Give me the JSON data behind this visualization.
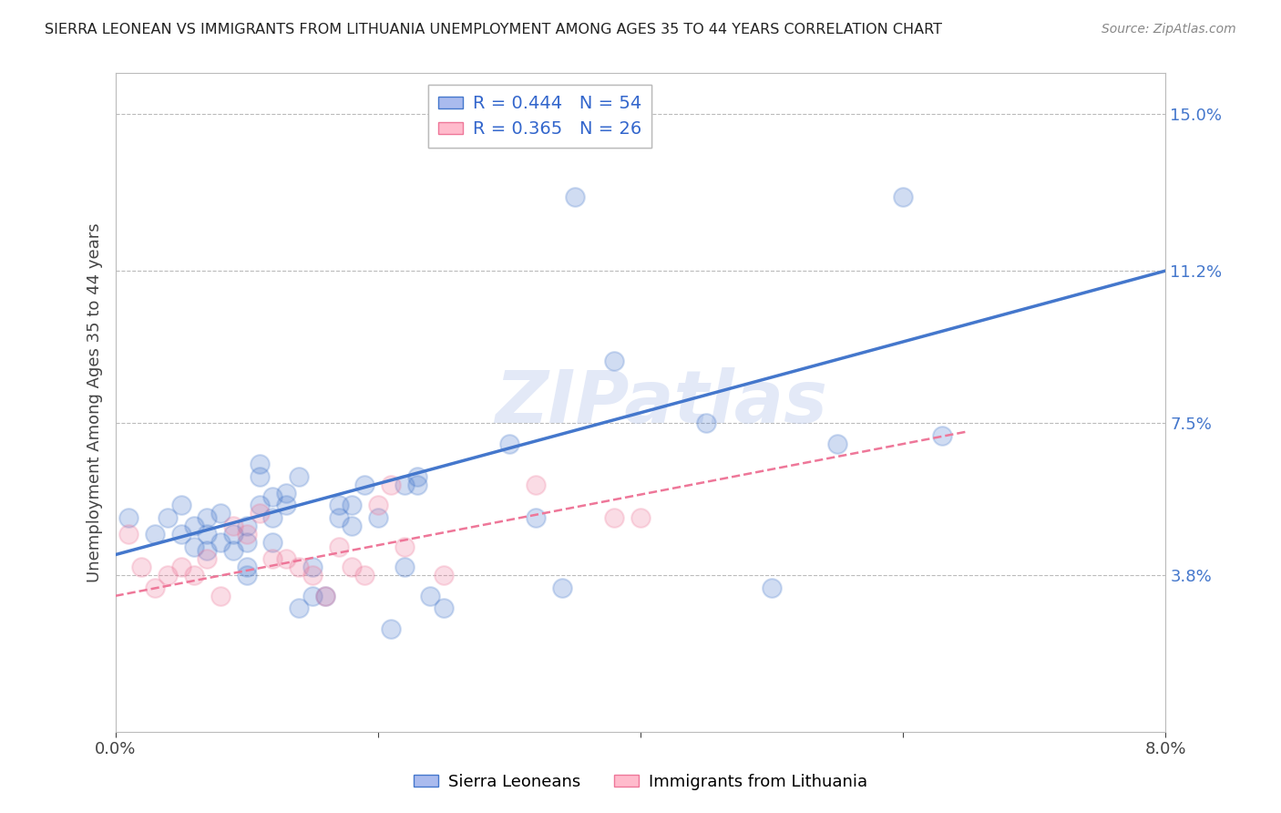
{
  "title": "SIERRA LEONEAN VS IMMIGRANTS FROM LITHUANIA UNEMPLOYMENT AMONG AGES 35 TO 44 YEARS CORRELATION CHART",
  "source": "Source: ZipAtlas.com",
  "xlabel": "",
  "ylabel": "Unemployment Among Ages 35 to 44 years",
  "xlim": [
    0.0,
    0.08
  ],
  "ylim": [
    0.0,
    0.16
  ],
  "xticks": [
    0.0,
    0.02,
    0.04,
    0.06,
    0.08
  ],
  "xticklabels": [
    "0.0%",
    "",
    "",
    "",
    "8.0%"
  ],
  "ytick_labels_right": [
    "15.0%",
    "11.2%",
    "7.5%",
    "3.8%"
  ],
  "ytick_vals_right": [
    0.15,
    0.112,
    0.075,
    0.038
  ],
  "legend_entries": [
    {
      "label": "R = 0.444   N = 54",
      "color": "#6699ff"
    },
    {
      "label": "R = 0.365   N = 26",
      "color": "#ff99aa"
    }
  ],
  "bottom_legend": [
    "Sierra Leoneans",
    "Immigrants from Lithuania"
  ],
  "blue_color": "#4477cc",
  "pink_color": "#ee7799",
  "watermark": "ZIPatlas",
  "sl_scatter": [
    [
      0.001,
      0.052
    ],
    [
      0.003,
      0.048
    ],
    [
      0.004,
      0.052
    ],
    [
      0.005,
      0.055
    ],
    [
      0.005,
      0.048
    ],
    [
      0.006,
      0.05
    ],
    [
      0.006,
      0.045
    ],
    [
      0.007,
      0.044
    ],
    [
      0.007,
      0.048
    ],
    [
      0.007,
      0.052
    ],
    [
      0.008,
      0.053
    ],
    [
      0.008,
      0.046
    ],
    [
      0.009,
      0.044
    ],
    [
      0.009,
      0.048
    ],
    [
      0.01,
      0.05
    ],
    [
      0.01,
      0.046
    ],
    [
      0.01,
      0.04
    ],
    [
      0.01,
      0.038
    ],
    [
      0.011,
      0.062
    ],
    [
      0.011,
      0.065
    ],
    [
      0.011,
      0.055
    ],
    [
      0.012,
      0.057
    ],
    [
      0.012,
      0.052
    ],
    [
      0.012,
      0.046
    ],
    [
      0.013,
      0.055
    ],
    [
      0.013,
      0.058
    ],
    [
      0.014,
      0.062
    ],
    [
      0.014,
      0.03
    ],
    [
      0.015,
      0.04
    ],
    [
      0.015,
      0.033
    ],
    [
      0.016,
      0.033
    ],
    [
      0.017,
      0.055
    ],
    [
      0.017,
      0.052
    ],
    [
      0.018,
      0.055
    ],
    [
      0.018,
      0.05
    ],
    [
      0.019,
      0.06
    ],
    [
      0.02,
      0.052
    ],
    [
      0.021,
      0.025
    ],
    [
      0.022,
      0.06
    ],
    [
      0.022,
      0.04
    ],
    [
      0.023,
      0.062
    ],
    [
      0.023,
      0.06
    ],
    [
      0.024,
      0.033
    ],
    [
      0.025,
      0.03
    ],
    [
      0.03,
      0.07
    ],
    [
      0.032,
      0.052
    ],
    [
      0.034,
      0.035
    ],
    [
      0.035,
      0.13
    ],
    [
      0.038,
      0.09
    ],
    [
      0.045,
      0.075
    ],
    [
      0.05,
      0.035
    ],
    [
      0.055,
      0.07
    ],
    [
      0.06,
      0.13
    ],
    [
      0.063,
      0.072
    ]
  ],
  "lith_scatter": [
    [
      0.001,
      0.048
    ],
    [
      0.002,
      0.04
    ],
    [
      0.003,
      0.035
    ],
    [
      0.004,
      0.038
    ],
    [
      0.005,
      0.04
    ],
    [
      0.006,
      0.038
    ],
    [
      0.007,
      0.042
    ],
    [
      0.008,
      0.033
    ],
    [
      0.009,
      0.05
    ],
    [
      0.01,
      0.048
    ],
    [
      0.011,
      0.053
    ],
    [
      0.012,
      0.042
    ],
    [
      0.013,
      0.042
    ],
    [
      0.014,
      0.04
    ],
    [
      0.015,
      0.038
    ],
    [
      0.016,
      0.033
    ],
    [
      0.017,
      0.045
    ],
    [
      0.018,
      0.04
    ],
    [
      0.019,
      0.038
    ],
    [
      0.02,
      0.055
    ],
    [
      0.021,
      0.06
    ],
    [
      0.022,
      0.045
    ],
    [
      0.025,
      0.038
    ],
    [
      0.032,
      0.06
    ],
    [
      0.038,
      0.052
    ],
    [
      0.04,
      0.052
    ]
  ],
  "blue_line": [
    [
      0.0,
      0.043
    ],
    [
      0.08,
      0.112
    ]
  ],
  "pink_line": [
    [
      0.0,
      0.033
    ],
    [
      0.065,
      0.073
    ]
  ],
  "background_color": "#ffffff",
  "grid_color": "#bbbbbb"
}
